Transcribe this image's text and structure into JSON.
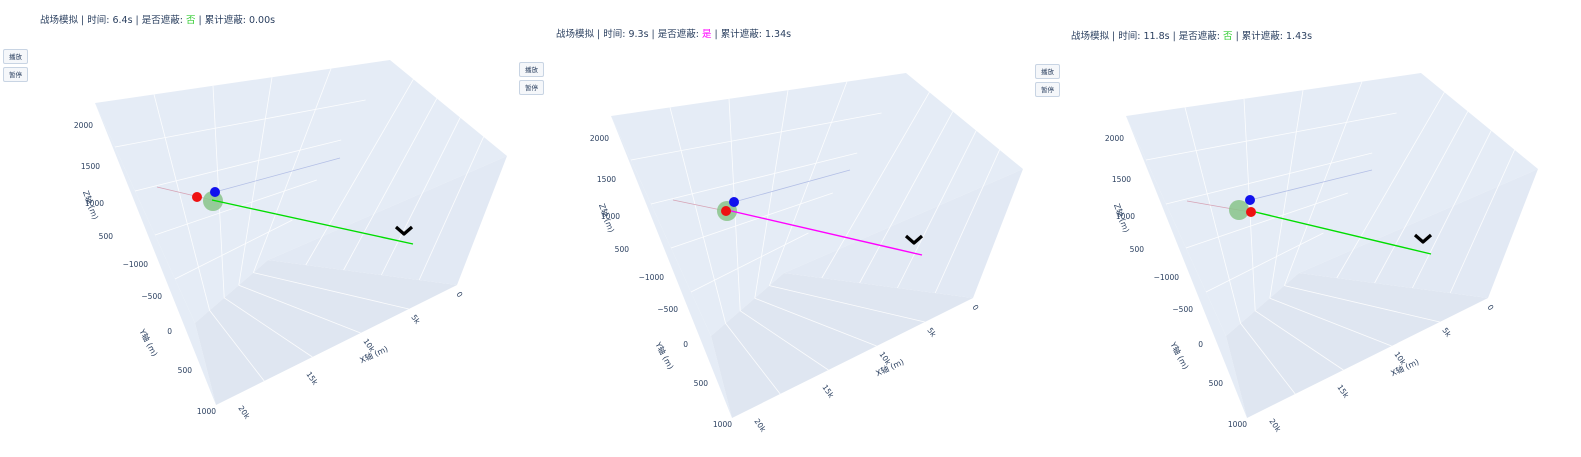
{
  "labels": {
    "play_button": "播放",
    "pause_button": "暂停",
    "x_axis_title": "X轴 (m)",
    "y_axis_title": "Y轴 (m)",
    "z_axis_title": "Z轴 (m)"
  },
  "frames": [
    {
      "title_prefix": "战场模拟 | 时间: 6.4s | 是否遮蔽: ",
      "occluded_text": "否",
      "occluded_color": "#33cc33",
      "title_suffix": " | 累计遮蔽: 0.00s",
      "los_color": "#00dd00"
    },
    {
      "title_prefix": "战场模拟 | 时间: 9.3s | 是否遮蔽: ",
      "occluded_text": "是",
      "occluded_color": "#ff00ff",
      "title_suffix": " | 累计遮蔽: 1.34s",
      "los_color": "#ff00ff"
    },
    {
      "title_prefix": "战场模拟 | 时间: 11.8s | 是否遮蔽: ",
      "occluded_text": "否",
      "occluded_color": "#33cc33",
      "title_suffix": " | 累计遮蔽: 1.43s",
      "los_color": "#00dd00"
    }
  ],
  "chart_data": {
    "type": "scatter3d",
    "axes": {
      "x": {
        "title": "X轴 (m)",
        "ticks": [
          "0",
          "5k",
          "10k",
          "15k",
          "20k"
        ]
      },
      "y": {
        "title": "Y轴 (m)",
        "ticks": [
          "−1000",
          "−500",
          "0",
          "500",
          "1000"
        ]
      },
      "z": {
        "title": "Z轴 (m)",
        "ticks": [
          "500",
          "1000",
          "1500",
          "2000"
        ]
      }
    },
    "series_colors": {
      "red_marker": "#ee1111",
      "blue_marker": "#1111ee",
      "smoke_cloud": "#88c48a",
      "target": "#000000"
    }
  }
}
